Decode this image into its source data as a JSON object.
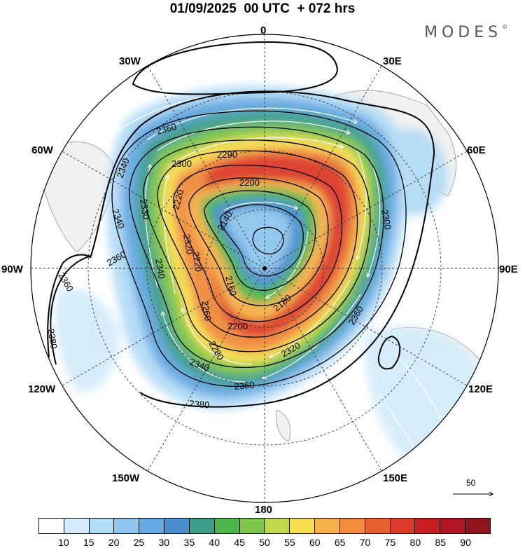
{
  "title": "01/09/2025  00 UTC  + 072 hrs",
  "brand": "MODES",
  "brand_mark": "©",
  "longitude_labels": [
    "0",
    "30E",
    "60E",
    "90E",
    "120E",
    "150E",
    "180",
    "150W",
    "120W",
    "90W",
    "60W",
    "30W"
  ],
  "contours": {
    "outer": [
      "2380",
      "2360",
      "2360",
      "2360",
      "2360",
      "2360",
      "2380"
    ],
    "middle": [
      "2340",
      "2340",
      "2330",
      "2340",
      "2320",
      "2300",
      "2300",
      "2290",
      "2340",
      "2320"
    ],
    "inner": [
      "2220",
      "2220",
      "2200",
      "2200",
      "2180",
      "2160",
      "2140",
      "2280",
      "2260"
    ]
  },
  "reference_vector": {
    "value": "50"
  },
  "colorbar": {
    "colors": [
      "#ffffff",
      "#d4ecfb",
      "#b3dcf6",
      "#8ec6ef",
      "#65a9e2",
      "#4a8ecc",
      "#3b9c8c",
      "#4cb64c",
      "#7ec64a",
      "#c2d84c",
      "#f6de52",
      "#f6b24a",
      "#f08c3c",
      "#e8602e",
      "#dc3a2a",
      "#c81e24",
      "#b01622",
      "#90141e"
    ],
    "labels": [
      "10",
      "15",
      "20",
      "25",
      "30",
      "35",
      "40",
      "45",
      "50",
      "55",
      "60",
      "65",
      "70",
      "75",
      "80",
      "85",
      "90"
    ]
  }
}
